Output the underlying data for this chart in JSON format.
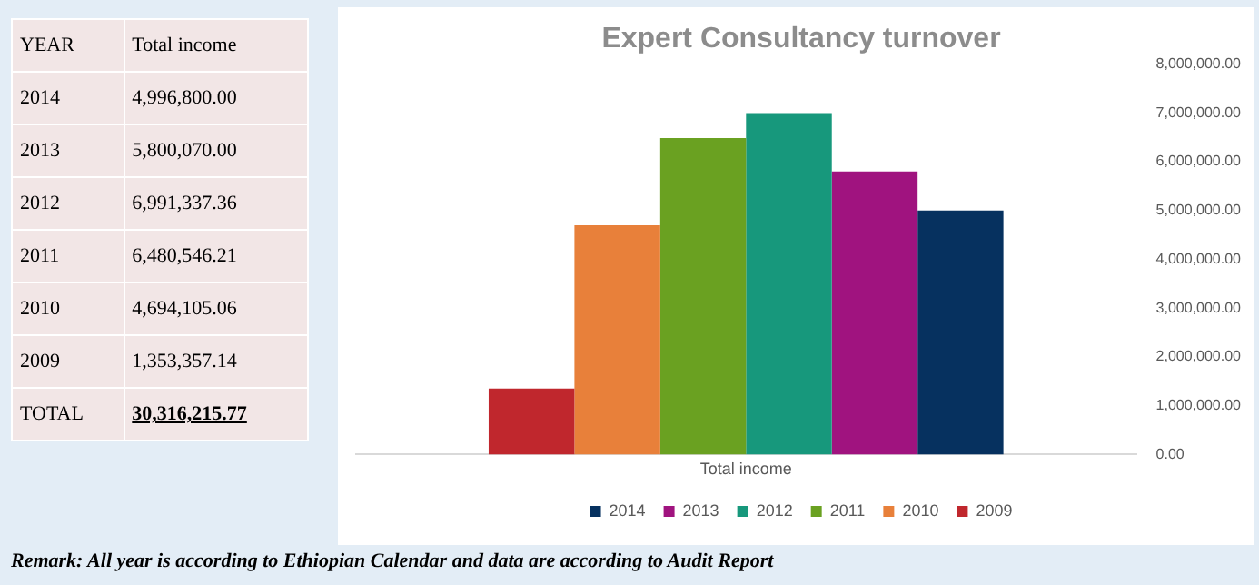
{
  "chart_data": {
    "type": "bar",
    "title": "Expert Consultancy turnover",
    "categories": [
      "Total income"
    ],
    "series": [
      {
        "name": "2009",
        "color": "#c0272d",
        "values": [
          1353357.14
        ]
      },
      {
        "name": "2010",
        "color": "#e8803a",
        "values": [
          4694105.06
        ]
      },
      {
        "name": "2011",
        "color": "#6aa121",
        "values": [
          6480546.21
        ]
      },
      {
        "name": "2012",
        "color": "#17987c",
        "values": [
          6991337.36
        ]
      },
      {
        "name": "2013",
        "color": "#a0137f",
        "values": [
          5800070.0
        ]
      },
      {
        "name": "2014",
        "color": "#06315f",
        "values": [
          4996800.0
        ]
      }
    ],
    "ylim": [
      0,
      8000000
    ],
    "yticks": [
      {
        "value": 0,
        "label": "0.00"
      },
      {
        "value": 1000000,
        "label": "1,000,000.00"
      },
      {
        "value": 2000000,
        "label": "2,000,000.00"
      },
      {
        "value": 3000000,
        "label": "3,000,000.00"
      },
      {
        "value": 4000000,
        "label": "4,000,000.00"
      },
      {
        "value": 5000000,
        "label": "5,000,000.00"
      },
      {
        "value": 6000000,
        "label": "6,000,000.00"
      },
      {
        "value": 7000000,
        "label": "7,000,000.00"
      },
      {
        "value": 8000000,
        "label": "8,000,000.00"
      }
    ],
    "grid": false,
    "legend": "bottom",
    "annotations": [
      "YEAR",
      "4,996,800.00",
      "5,800,070.00",
      "6,991,337.36",
      "6,480,546.21",
      "4,694,105.06",
      "1,353,357.14",
      "TOTAL",
      "30,316,215.77",
      "Remark: All year is according to Ethiopian Calendar and data are according to Audit Report"
    ]
  }
}
